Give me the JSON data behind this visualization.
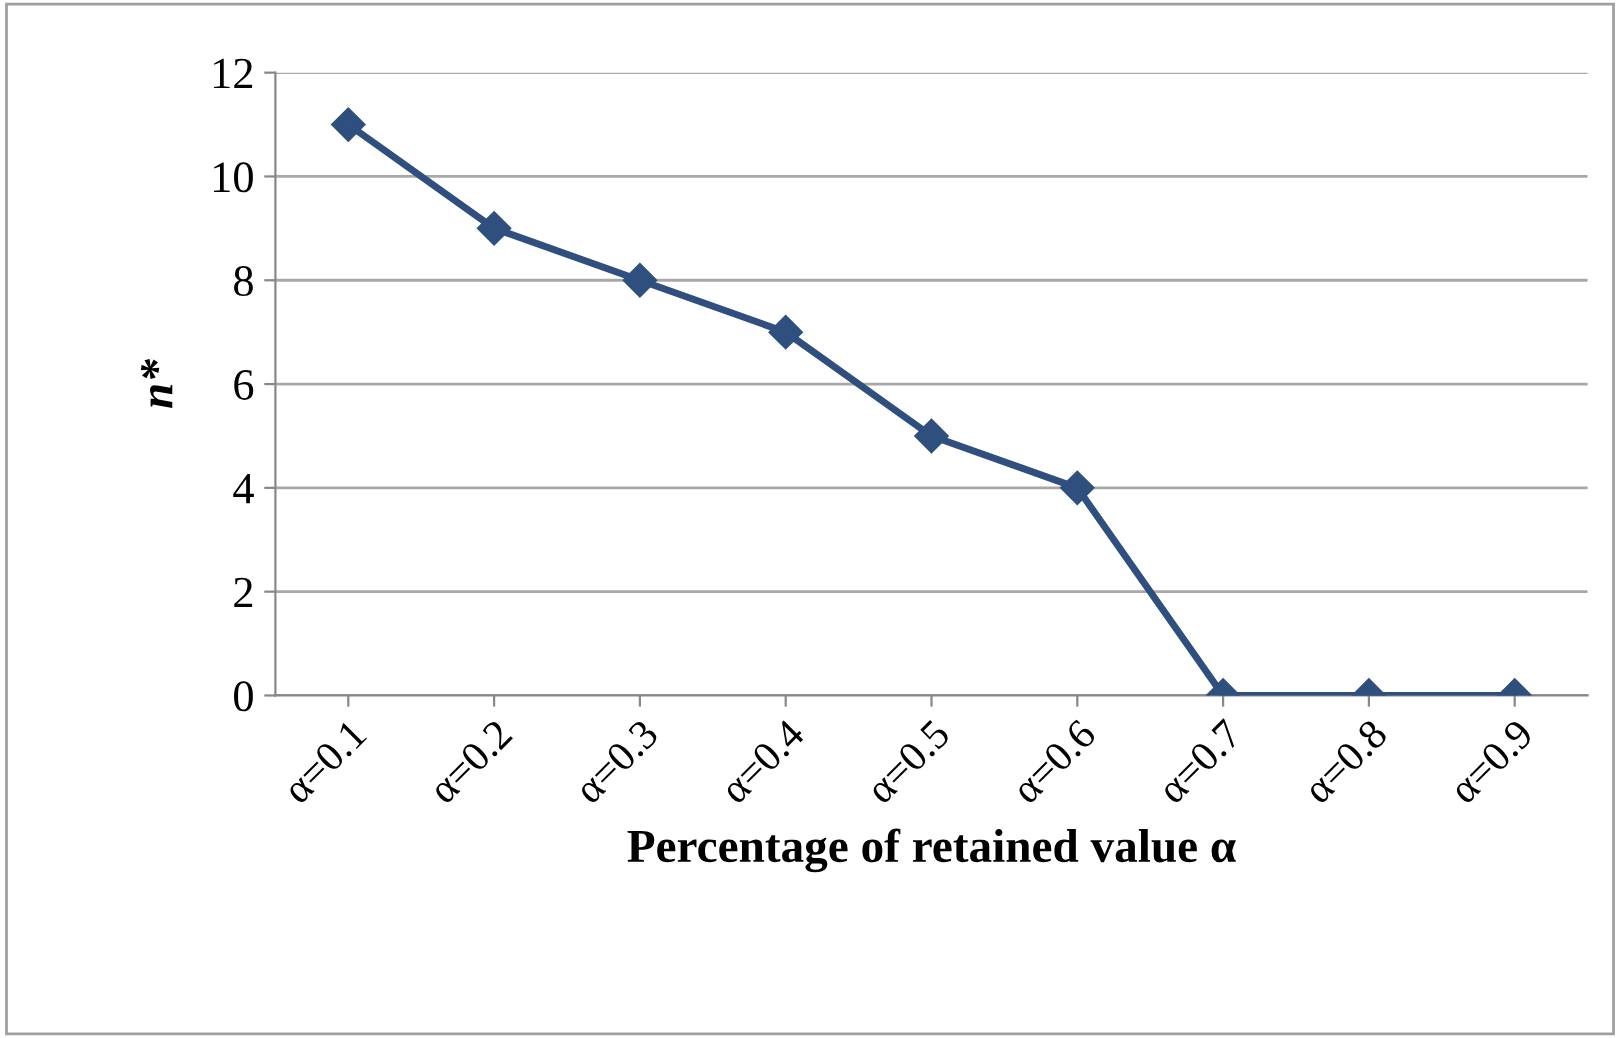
{
  "chart_data": {
    "type": "line",
    "xlabel": "Percentage of retained value α",
    "ylabel": "n*",
    "categories": [
      "α=0.1",
      "α=0.2",
      "α=0.3",
      "α=0.4",
      "α=0.5",
      "α=0.6",
      "α=0.7",
      "α=0.8",
      "α=0.9"
    ],
    "series": [
      {
        "color": "#2f4f7f",
        "values": [
          11,
          9,
          8,
          7,
          5,
          4,
          0,
          0,
          0
        ]
      }
    ],
    "ylim": [
      0,
      12
    ],
    "yticks": [
      0,
      2,
      4,
      6,
      8,
      10,
      12
    ],
    "grid": "y",
    "marker": "diamond",
    "line_style": "solid"
  }
}
